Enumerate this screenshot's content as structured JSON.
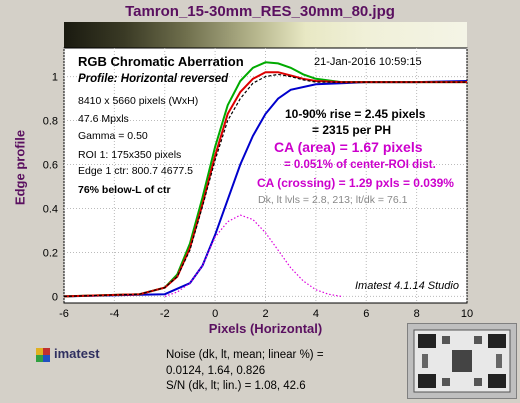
{
  "title": "Tamron_15-30mm_RES_30mm_80.jpg",
  "chart_data": {
    "type": "line",
    "xlabel": "Pixels (Horizontal)",
    "ylabel": "Edge profile",
    "xlim": [
      -6,
      10
    ],
    "ylim": [
      -0.03,
      1.13
    ],
    "x_ticks": [
      "-6",
      "-4",
      "-2",
      "0",
      "2",
      "4",
      "6",
      "8",
      "10"
    ],
    "y_ticks": [
      "0",
      "0.2",
      "0.4",
      "0.6",
      "0.8",
      "1"
    ],
    "grid": true,
    "series": [
      {
        "color": "#0000cc",
        "points": [
          [
            -6,
            0.0
          ],
          [
            -2,
            0.01
          ],
          [
            -1,
            0.06
          ],
          [
            -0.5,
            0.14
          ],
          [
            0,
            0.28
          ],
          [
            0.5,
            0.44
          ],
          [
            1,
            0.6
          ],
          [
            1.5,
            0.73
          ],
          [
            2,
            0.83
          ],
          [
            2.5,
            0.9
          ],
          [
            3,
            0.94
          ],
          [
            4,
            0.965
          ],
          [
            5,
            0.97
          ],
          [
            6,
            0.975
          ],
          [
            8,
            0.975
          ],
          [
            10,
            0.98
          ]
        ]
      },
      {
        "color": "#00aa00",
        "points": [
          [
            -6,
            0.0
          ],
          [
            -3,
            0.01
          ],
          [
            -2,
            0.04
          ],
          [
            -1.5,
            0.1
          ],
          [
            -1,
            0.24
          ],
          [
            -0.5,
            0.45
          ],
          [
            0,
            0.68
          ],
          [
            0.5,
            0.87
          ],
          [
            1,
            0.98
          ],
          [
            1.5,
            1.04
          ],
          [
            2,
            1.065
          ],
          [
            2.5,
            1.06
          ],
          [
            3,
            1.04
          ],
          [
            3.5,
            1.01
          ],
          [
            4,
            0.99
          ],
          [
            5,
            0.975
          ],
          [
            6,
            0.975
          ],
          [
            8,
            0.975
          ],
          [
            10,
            0.975
          ]
        ]
      },
      {
        "color": "#dd0000",
        "points": [
          [
            -6,
            0.0
          ],
          [
            -3,
            0.01
          ],
          [
            -2,
            0.04
          ],
          [
            -1.5,
            0.09
          ],
          [
            -1,
            0.22
          ],
          [
            -0.5,
            0.42
          ],
          [
            0,
            0.64
          ],
          [
            0.5,
            0.83
          ],
          [
            1,
            0.93
          ],
          [
            1.5,
            0.99
          ],
          [
            2,
            1.02
          ],
          [
            2.5,
            1.02
          ],
          [
            3,
            1.005
          ],
          [
            3.5,
            0.99
          ],
          [
            4,
            0.98
          ],
          [
            5,
            0.975
          ],
          [
            6,
            0.975
          ],
          [
            8,
            0.975
          ],
          [
            10,
            0.975
          ]
        ]
      },
      {
        "color": "#000000",
        "dashed": true,
        "points": [
          [
            -6,
            0.0
          ],
          [
            -3,
            0.01
          ],
          [
            -2,
            0.04
          ],
          [
            -1.5,
            0.09
          ],
          [
            -1,
            0.21
          ],
          [
            -0.5,
            0.41
          ],
          [
            0,
            0.62
          ],
          [
            0.5,
            0.8
          ],
          [
            1,
            0.9
          ],
          [
            1.5,
            0.97
          ],
          [
            2,
            1.0
          ],
          [
            2.5,
            1.01
          ],
          [
            3,
            1.0
          ],
          [
            3.5,
            0.985
          ],
          [
            4,
            0.975
          ],
          [
            6,
            0.975
          ],
          [
            10,
            0.975
          ]
        ]
      },
      {
        "color": "#dd00dd",
        "dotted": true,
        "points": [
          [
            -2,
            0.0
          ],
          [
            -1.5,
            0.02
          ],
          [
            -1,
            0.06
          ],
          [
            -0.5,
            0.14
          ],
          [
            0,
            0.27
          ],
          [
            0.5,
            0.34
          ],
          [
            1,
            0.37
          ],
          [
            1.5,
            0.35
          ],
          [
            2,
            0.29
          ],
          [
            2.5,
            0.21
          ],
          [
            3,
            0.13
          ],
          [
            3.5,
            0.07
          ],
          [
            4,
            0.03
          ],
          [
            4.5,
            0.01
          ],
          [
            5,
            0.0
          ]
        ]
      }
    ],
    "annotations": {
      "heading": "RGB Chromatic Aberration",
      "profile": "Profile: Horizontal reversed",
      "date": "21-Jan-2016 10:59:15",
      "info": [
        "8410 x 5660 pixels (WxH)",
        "47.6 Mpxls",
        "Gamma = 0.50",
        "ROI 1: 175x350 pixels",
        "Edge 1 ctr: 800.7  4677.5"
      ],
      "below": "76% below-L of ctr",
      "rise": "10-90% rise = 2.45 pixels",
      "per_ph": "= 2315 per PH",
      "ca_area": "CA (area) = 1.67 pixels",
      "ca_area_pct": "= 0.051% of center-ROI dist.",
      "ca_crossing": "CA (crossing) = 1.29 pxls = 0.039%",
      "dk_lt": "Dk, lt lvls = 2.8, 213;  lt/dk = 76.1",
      "version": "Imatest 4.1.14  Studio"
    }
  },
  "footer": {
    "logo": "imatest",
    "noise_lines": [
      "Noise (dk, lt, mean; linear %) =",
      "0.0124,  1.64,  0.826",
      "S/N (dk, lt; lin.) = 1.08,  42.6"
    ]
  }
}
